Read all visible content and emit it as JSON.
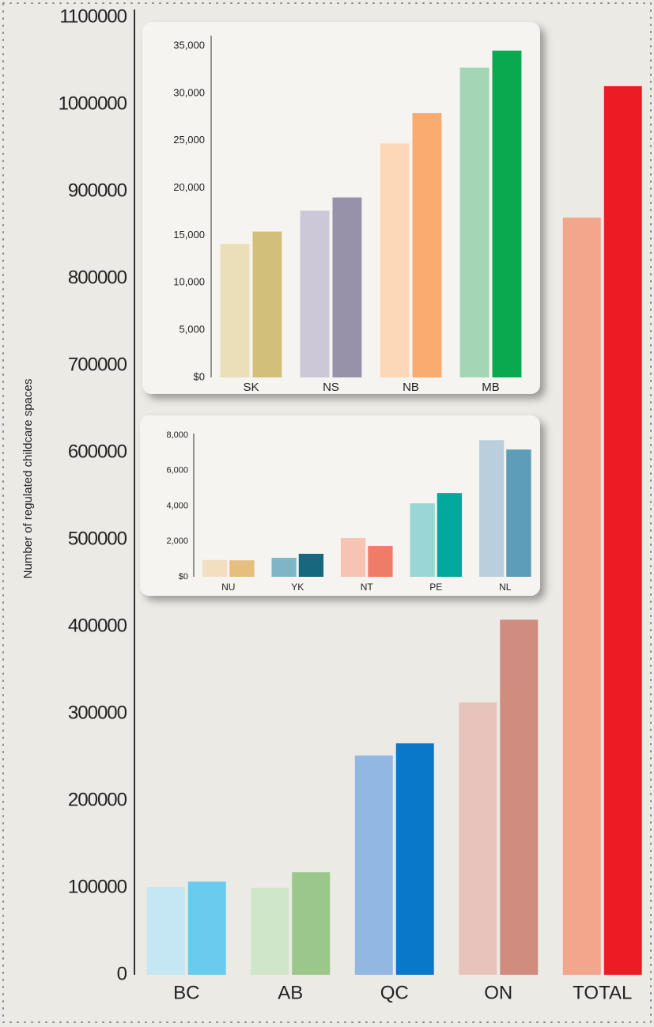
{
  "chart_data": [
    {
      "type": "bar",
      "y_label": "Number of regulated childcare spaces",
      "categories": [
        "BC",
        "AB",
        "QC",
        "ON",
        "TOTAL"
      ],
      "series": [
        {
          "colors": [
            "#c5e6f3",
            "#d0e6c8",
            "#93b7e3",
            "#e8c3bb",
            "#f4a68c"
          ],
          "values": [
            101000,
            100000,
            252000,
            313000,
            870000
          ]
        },
        {
          "colors": [
            "#6acbee",
            "#9bc88a",
            "#0a78c8",
            "#cf8c7f",
            "#ec1c24"
          ],
          "values": [
            107000,
            118000,
            266000,
            408000,
            1021000
          ]
        }
      ],
      "ylim": [
        0,
        1100000
      ],
      "yticks": [
        0,
        100000,
        200000,
        300000,
        400000,
        500000,
        600000,
        700000,
        800000,
        900000,
        1000000,
        1100000
      ]
    },
    {
      "type": "bar",
      "categories": [
        "SK",
        "NS",
        "NB",
        "MB"
      ],
      "series": [
        {
          "colors": [
            "#eadfb8",
            "#cdc8d8",
            "#fdd8b8",
            "#a3d6b4"
          ],
          "values": [
            14100,
            17600,
            24700,
            32700
          ]
        },
        {
          "colors": [
            "#d2c07a",
            "#9891aa",
            "#f9ab70",
            "#0aa84f"
          ],
          "values": [
            15400,
            19000,
            27900,
            34500
          ]
        }
      ],
      "ylim": [
        0,
        35000
      ],
      "yticks": [
        {
          "value": 0,
          "label": "$0"
        },
        {
          "value": 5000,
          "label": "5,000"
        },
        {
          "value": 10000,
          "label": "10,000"
        },
        {
          "value": 15000,
          "label": "15,000"
        },
        {
          "value": 20000,
          "label": "20,000"
        },
        {
          "value": 25000,
          "label": "25,000"
        },
        {
          "value": 30000,
          "label": "30,000"
        },
        {
          "value": 35000,
          "label": "35,000"
        }
      ]
    },
    {
      "type": "bar",
      "categories": [
        "NU",
        "YK",
        "NT",
        "PE",
        "NL"
      ],
      "series": [
        {
          "colors": [
            "#f3dfbf",
            "#7fb5c7",
            "#f7c3b3",
            "#9ad6d6",
            "#b9cfdd"
          ],
          "values": [
            950,
            1070,
            2190,
            4150,
            7720
          ]
        },
        {
          "colors": [
            "#e6be7e",
            "#17677f",
            "#ef7c66",
            "#00a89e",
            "#5e9db8"
          ],
          "values": [
            930,
            1300,
            1740,
            4730,
            7190
          ]
        }
      ],
      "ylim": [
        0,
        8000
      ],
      "yticks": [
        {
          "value": 0,
          "label": "$0"
        },
        {
          "value": 2000,
          "label": "2,000"
        },
        {
          "value": 4000,
          "label": "4,000"
        },
        {
          "value": 6000,
          "label": "6,000"
        },
        {
          "value": 8000,
          "label": "8,000"
        }
      ]
    }
  ]
}
